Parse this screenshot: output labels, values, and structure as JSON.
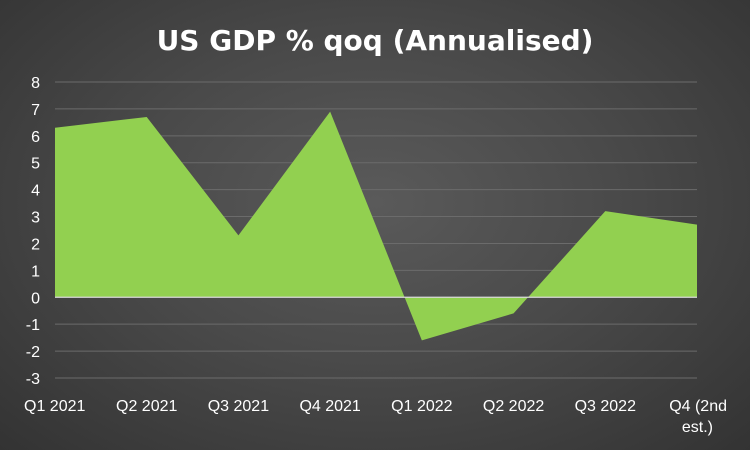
{
  "chart_data": {
    "type": "area",
    "title": "US GDP % qoq (Annualised)",
    "categories": [
      "Q1 2021",
      "Q2 2021",
      "Q3 2021",
      "Q4 2021",
      "Q1 2022",
      "Q2 2022",
      "Q3 2022",
      "Q4 (2nd est.)"
    ],
    "series": [
      {
        "values": [
          6.3,
          6.7,
          2.3,
          6.9,
          -1.6,
          -0.6,
          3.2,
          2.7
        ],
        "color": "#92d050"
      }
    ],
    "ylim": [
      -3,
      8
    ],
    "yticks": [
      8,
      7,
      6,
      5,
      4,
      3,
      2,
      1,
      0,
      -1,
      -2,
      -3
    ],
    "xlabel": "",
    "ylabel": "",
    "grid": true,
    "legend": "none"
  }
}
